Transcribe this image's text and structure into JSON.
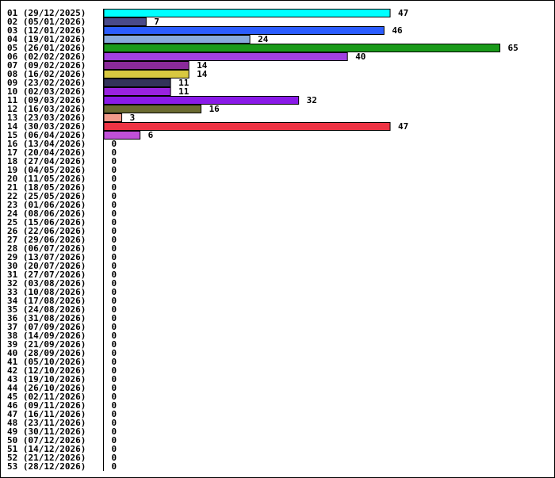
{
  "chart_data": {
    "type": "bar",
    "orientation": "horizontal",
    "title": "",
    "xlabel": "",
    "ylabel": "",
    "xlim": [
      0,
      65
    ],
    "grid": false,
    "legend": "none",
    "categories": [
      "01 (29/12/2025)",
      "02 (05/01/2026)",
      "03 (12/01/2026)",
      "04 (19/01/2026)",
      "05 (26/01/2026)",
      "06 (02/02/2026)",
      "07 (09/02/2026)",
      "08 (16/02/2026)",
      "09 (23/02/2026)",
      "10 (02/03/2026)",
      "11 (09/03/2026)",
      "12 (16/03/2026)",
      "13 (23/03/2026)",
      "14 (30/03/2026)",
      "15 (06/04/2026)",
      "16 (13/04/2026)",
      "17 (20/04/2026)",
      "18 (27/04/2026)",
      "19 (04/05/2026)",
      "20 (11/05/2026)",
      "21 (18/05/2026)",
      "22 (25/05/2026)",
      "23 (01/06/2026)",
      "24 (08/06/2026)",
      "25 (15/06/2026)",
      "26 (22/06/2026)",
      "27 (29/06/2026)",
      "28 (06/07/2026)",
      "29 (13/07/2026)",
      "30 (20/07/2026)",
      "31 (27/07/2026)",
      "32 (03/08/2026)",
      "33 (10/08/2026)",
      "34 (17/08/2026)",
      "35 (24/08/2026)",
      "36 (31/08/2026)",
      "37 (07/09/2026)",
      "38 (14/09/2026)",
      "39 (21/09/2026)",
      "40 (28/09/2026)",
      "41 (05/10/2026)",
      "42 (12/10/2026)",
      "43 (19/10/2026)",
      "44 (26/10/2026)",
      "45 (02/11/2026)",
      "46 (09/11/2026)",
      "47 (16/11/2026)",
      "48 (23/11/2026)",
      "49 (30/11/2026)",
      "50 (07/12/2026)",
      "51 (14/12/2026)",
      "52 (21/12/2026)",
      "53 (28/12/2026)"
    ],
    "values": [
      47,
      7,
      46,
      24,
      65,
      40,
      14,
      14,
      11,
      11,
      32,
      16,
      3,
      47,
      6,
      0,
      0,
      0,
      0,
      0,
      0,
      0,
      0,
      0,
      0,
      0,
      0,
      0,
      0,
      0,
      0,
      0,
      0,
      0,
      0,
      0,
      0,
      0,
      0,
      0,
      0,
      0,
      0,
      0,
      0,
      0,
      0,
      0,
      0,
      0,
      0,
      0,
      0
    ],
    "colors": [
      "#00ffff",
      "#4a4a8a",
      "#2b5cff",
      "#88aadd",
      "#1a9a1a",
      "#a040e0",
      "#8a2a9a",
      "#d8c840",
      "#33335a",
      "#9a22e0",
      "#8a1ae8",
      "#6a6a30",
      "#f09a8a",
      "#ee3344",
      "#c050d8"
    ]
  }
}
